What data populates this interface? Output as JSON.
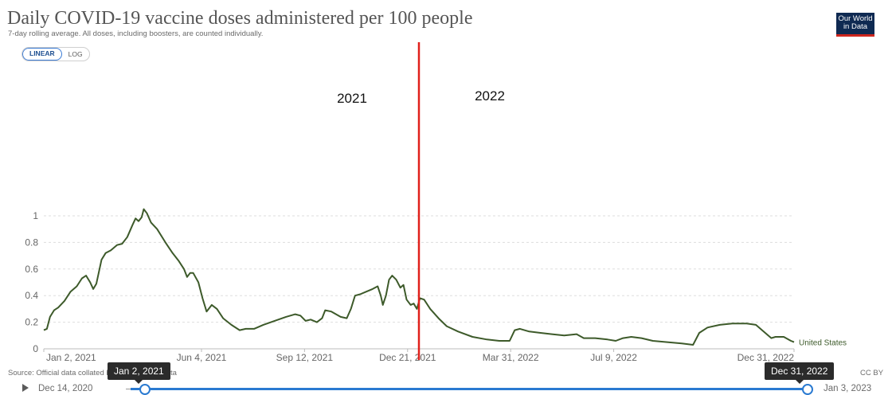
{
  "header": {
    "title": "Daily COVID-19 vaccine doses administered per 100 people",
    "subtitle": "7-day rolling average. All doses, including boosters, are counted individually.",
    "logo_line1": "Our World",
    "logo_line2": "in Data"
  },
  "scale_toggle": {
    "linear": "LINEAR",
    "log": "LOG",
    "selected": "LINEAR"
  },
  "annotations": {
    "left_year": "2021",
    "right_year": "2022",
    "divider_date": "2022-01-01",
    "divider_color": "#e0201b"
  },
  "footer": {
    "source": "Source: Official data collated by Our World in Data",
    "license": "CC BY"
  },
  "timeline": {
    "start_label": "Dec 14, 2020",
    "end_label": "Jan 3, 2023",
    "selected_start": "Jan 2, 2021",
    "selected_end": "Dec 31, 2022"
  },
  "colors": {
    "series": "#3d5a2a",
    "accent": "#2a7ad1",
    "grid": "#dddddd"
  },
  "chart_data": {
    "type": "line",
    "x_ticks": [
      "Jan 2, 2021",
      "Jun 4, 2021",
      "Sep 12, 2021",
      "Dec 21, 2021",
      "Mar 31, 2022",
      "Jul 9, 2022",
      "Dec 31, 2022"
    ],
    "y_ticks": [
      "0",
      "0.2",
      "0.4",
      "0.6",
      "0.8",
      "1"
    ],
    "ylim": [
      0,
      1.05
    ],
    "xlim": [
      "2021-01-02",
      "2022-12-31"
    ],
    "grid": "horizontal-dashed",
    "series": [
      {
        "name": "United States",
        "points": [
          [
            "2021-01-02",
            0.14
          ],
          [
            "2021-01-05",
            0.15
          ],
          [
            "2021-01-08",
            0.24
          ],
          [
            "2021-01-12",
            0.29
          ],
          [
            "2021-01-16",
            0.31
          ],
          [
            "2021-01-22",
            0.36
          ],
          [
            "2021-01-28",
            0.43
          ],
          [
            "2021-02-03",
            0.47
          ],
          [
            "2021-02-08",
            0.53
          ],
          [
            "2021-02-12",
            0.55
          ],
          [
            "2021-02-16",
            0.5
          ],
          [
            "2021-02-19",
            0.45
          ],
          [
            "2021-02-22",
            0.49
          ],
          [
            "2021-02-27",
            0.67
          ],
          [
            "2021-03-03",
            0.72
          ],
          [
            "2021-03-08",
            0.74
          ],
          [
            "2021-03-14",
            0.78
          ],
          [
            "2021-03-19",
            0.79
          ],
          [
            "2021-03-24",
            0.84
          ],
          [
            "2021-03-29",
            0.93
          ],
          [
            "2021-04-01",
            0.98
          ],
          [
            "2021-04-04",
            0.96
          ],
          [
            "2021-04-07",
            0.99
          ],
          [
            "2021-04-09",
            1.05
          ],
          [
            "2021-04-12",
            1.02
          ],
          [
            "2021-04-16",
            0.95
          ],
          [
            "2021-04-22",
            0.9
          ],
          [
            "2021-04-30",
            0.8
          ],
          [
            "2021-05-07",
            0.72
          ],
          [
            "2021-05-13",
            0.66
          ],
          [
            "2021-05-18",
            0.6
          ],
          [
            "2021-05-21",
            0.54
          ],
          [
            "2021-05-24",
            0.57
          ],
          [
            "2021-05-27",
            0.57
          ],
          [
            "2021-06-01",
            0.5
          ],
          [
            "2021-06-05",
            0.38
          ],
          [
            "2021-06-09",
            0.28
          ],
          [
            "2021-06-14",
            0.33
          ],
          [
            "2021-06-19",
            0.3
          ],
          [
            "2021-06-25",
            0.23
          ],
          [
            "2021-07-03",
            0.18
          ],
          [
            "2021-07-11",
            0.14
          ],
          [
            "2021-07-17",
            0.15
          ],
          [
            "2021-07-25",
            0.15
          ],
          [
            "2021-08-03",
            0.18
          ],
          [
            "2021-08-14",
            0.21
          ],
          [
            "2021-08-25",
            0.24
          ],
          [
            "2021-09-03",
            0.26
          ],
          [
            "2021-09-08",
            0.25
          ],
          [
            "2021-09-13",
            0.21
          ],
          [
            "2021-09-18",
            0.22
          ],
          [
            "2021-09-24",
            0.2
          ],
          [
            "2021-09-29",
            0.23
          ],
          [
            "2021-10-02",
            0.29
          ],
          [
            "2021-10-08",
            0.28
          ],
          [
            "2021-10-17",
            0.24
          ],
          [
            "2021-10-23",
            0.23
          ],
          [
            "2021-10-27",
            0.3
          ],
          [
            "2021-10-31",
            0.4
          ],
          [
            "2021-11-05",
            0.41
          ],
          [
            "2021-11-11",
            0.43
          ],
          [
            "2021-11-17",
            0.45
          ],
          [
            "2021-11-22",
            0.47
          ],
          [
            "2021-11-25",
            0.4
          ],
          [
            "2021-11-27",
            0.33
          ],
          [
            "2021-11-30",
            0.4
          ],
          [
            "2021-12-03",
            0.52
          ],
          [
            "2021-12-06",
            0.55
          ],
          [
            "2021-12-10",
            0.52
          ],
          [
            "2021-12-14",
            0.46
          ],
          [
            "2021-12-17",
            0.48
          ],
          [
            "2021-12-20",
            0.37
          ],
          [
            "2021-12-24",
            0.33
          ],
          [
            "2021-12-27",
            0.34
          ],
          [
            "2021-12-30",
            0.3
          ],
          [
            "2022-01-02",
            0.38
          ],
          [
            "2022-01-06",
            0.37
          ],
          [
            "2022-01-12",
            0.3
          ],
          [
            "2022-01-20",
            0.23
          ],
          [
            "2022-01-28",
            0.17
          ],
          [
            "2022-02-08",
            0.13
          ],
          [
            "2022-02-22",
            0.09
          ],
          [
            "2022-03-08",
            0.07
          ],
          [
            "2022-03-20",
            0.06
          ],
          [
            "2022-03-30",
            0.06
          ],
          [
            "2022-04-04",
            0.14
          ],
          [
            "2022-04-09",
            0.15
          ],
          [
            "2022-04-18",
            0.13
          ],
          [
            "2022-04-29",
            0.12
          ],
          [
            "2022-05-10",
            0.11
          ],
          [
            "2022-05-22",
            0.1
          ],
          [
            "2022-06-03",
            0.11
          ],
          [
            "2022-06-10",
            0.08
          ],
          [
            "2022-06-21",
            0.08
          ],
          [
            "2022-07-03",
            0.07
          ],
          [
            "2022-07-11",
            0.06
          ],
          [
            "2022-07-18",
            0.08
          ],
          [
            "2022-07-26",
            0.09
          ],
          [
            "2022-08-05",
            0.08
          ],
          [
            "2022-08-16",
            0.06
          ],
          [
            "2022-08-30",
            0.05
          ],
          [
            "2022-09-13",
            0.04
          ],
          [
            "2022-09-24",
            0.03
          ],
          [
            "2022-09-30",
            0.12
          ],
          [
            "2022-10-08",
            0.16
          ],
          [
            "2022-10-20",
            0.18
          ],
          [
            "2022-11-01",
            0.19
          ],
          [
            "2022-11-15",
            0.19
          ],
          [
            "2022-11-24",
            0.18
          ],
          [
            "2022-12-03",
            0.12
          ],
          [
            "2022-12-09",
            0.08
          ],
          [
            "2022-12-13",
            0.09
          ],
          [
            "2022-12-21",
            0.09
          ],
          [
            "2022-12-28",
            0.06
          ],
          [
            "2022-12-31",
            0.05
          ]
        ]
      }
    ]
  }
}
